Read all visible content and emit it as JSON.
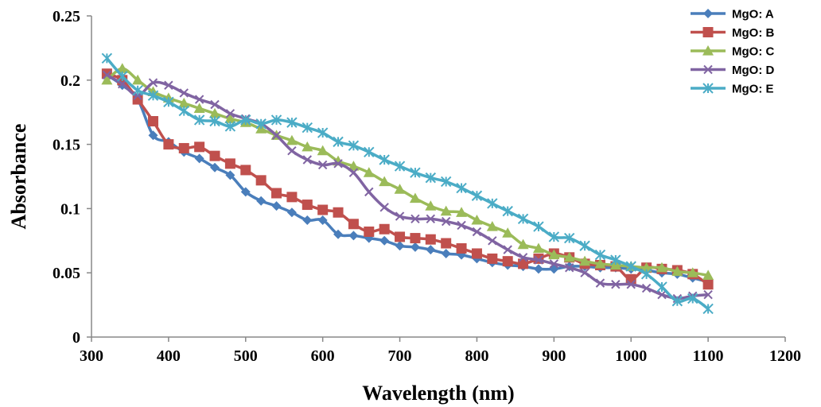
{
  "chart_data": {
    "type": "line",
    "title": "",
    "xlabel": "Wavelength (nm)",
    "ylabel": "Absorbance",
    "xlim": [
      300,
      1200
    ],
    "ylim": [
      0,
      0.25
    ],
    "xticks": [
      "300",
      "400",
      "500",
      "600",
      "700",
      "800",
      "900",
      "1000",
      "1100",
      "1200"
    ],
    "yticks": [
      "0",
      "0.05",
      "0.1",
      "0.15",
      "0.2",
      "0.25"
    ],
    "grid": false,
    "legend": "top-right",
    "series": [
      {
        "name": "MgO: A",
        "color": "#4a7ebb",
        "marker": "diamond",
        "x": [
          320,
          340,
          360,
          380,
          400,
          420,
          440,
          460,
          480,
          500,
          520,
          540,
          560,
          580,
          600,
          620,
          640,
          660,
          680,
          700,
          720,
          740,
          760,
          780,
          800,
          820,
          840,
          860,
          880,
          900,
          920,
          940,
          960,
          980,
          1000,
          1020,
          1040,
          1060,
          1080,
          1100
        ],
        "y": [
          0.204,
          0.196,
          0.185,
          0.157,
          0.152,
          0.144,
          0.139,
          0.132,
          0.126,
          0.113,
          0.106,
          0.102,
          0.097,
          0.091,
          0.091,
          0.08,
          0.079,
          0.077,
          0.075,
          0.071,
          0.07,
          0.068,
          0.065,
          0.064,
          0.061,
          0.058,
          0.056,
          0.055,
          0.053,
          0.053,
          0.055,
          0.055,
          0.054,
          0.054,
          0.053,
          0.052,
          0.05,
          0.049,
          0.046,
          0.043
        ]
      },
      {
        "name": "MgO: B",
        "color": "#c0504d",
        "marker": "square",
        "x": [
          320,
          340,
          360,
          380,
          400,
          420,
          440,
          460,
          480,
          500,
          520,
          540,
          560,
          580,
          600,
          620,
          640,
          660,
          680,
          700,
          720,
          740,
          760,
          780,
          800,
          820,
          840,
          860,
          880,
          900,
          920,
          940,
          960,
          980,
          1000,
          1020,
          1040,
          1060,
          1080,
          1100
        ],
        "y": [
          0.205,
          0.2,
          0.185,
          0.168,
          0.15,
          0.147,
          0.148,
          0.141,
          0.135,
          0.13,
          0.122,
          0.112,
          0.109,
          0.103,
          0.099,
          0.097,
          0.088,
          0.082,
          0.084,
          0.078,
          0.077,
          0.076,
          0.073,
          0.069,
          0.065,
          0.061,
          0.059,
          0.057,
          0.061,
          0.065,
          0.062,
          0.057,
          0.056,
          0.055,
          0.045,
          0.054,
          0.053,
          0.052,
          0.049,
          0.041
        ]
      },
      {
        "name": "MgO: C",
        "color": "#9bbb59",
        "marker": "triangle",
        "x": [
          320,
          340,
          360,
          380,
          400,
          420,
          440,
          460,
          480,
          500,
          520,
          540,
          560,
          580,
          600,
          620,
          640,
          660,
          680,
          700,
          720,
          740,
          760,
          780,
          800,
          820,
          840,
          860,
          880,
          900,
          920,
          940,
          960,
          980,
          1000,
          1020,
          1040,
          1060,
          1080,
          1100
        ],
        "y": [
          0.2,
          0.209,
          0.2,
          0.191,
          0.186,
          0.182,
          0.178,
          0.174,
          0.17,
          0.167,
          0.162,
          0.157,
          0.153,
          0.148,
          0.145,
          0.137,
          0.133,
          0.128,
          0.121,
          0.115,
          0.108,
          0.102,
          0.098,
          0.097,
          0.091,
          0.086,
          0.081,
          0.072,
          0.069,
          0.064,
          0.062,
          0.059,
          0.057,
          0.056,
          0.055,
          0.054,
          0.054,
          0.051,
          0.05,
          0.048
        ]
      },
      {
        "name": "MgO: D",
        "color": "#8064a2",
        "marker": "x",
        "x": [
          320,
          340,
          360,
          380,
          400,
          420,
          440,
          460,
          480,
          500,
          520,
          540,
          560,
          580,
          600,
          620,
          640,
          660,
          680,
          700,
          720,
          740,
          760,
          780,
          800,
          820,
          840,
          860,
          880,
          900,
          920,
          940,
          960,
          980,
          1000,
          1020,
          1040,
          1060,
          1080,
          1100
        ],
        "y": [
          0.204,
          0.197,
          0.188,
          0.198,
          0.196,
          0.19,
          0.185,
          0.181,
          0.174,
          0.17,
          0.166,
          0.157,
          0.145,
          0.138,
          0.134,
          0.135,
          0.128,
          0.113,
          0.101,
          0.094,
          0.092,
          0.092,
          0.09,
          0.087,
          0.082,
          0.075,
          0.068,
          0.062,
          0.06,
          0.057,
          0.054,
          0.05,
          0.042,
          0.041,
          0.041,
          0.038,
          0.033,
          0.03,
          0.032,
          0.033
        ]
      },
      {
        "name": "MgO: E",
        "color": "#4bacc6",
        "marker": "star",
        "x": [
          320,
          340,
          360,
          380,
          400,
          420,
          440,
          460,
          480,
          500,
          520,
          540,
          560,
          580,
          600,
          620,
          640,
          660,
          680,
          700,
          720,
          740,
          760,
          780,
          800,
          820,
          840,
          860,
          880,
          900,
          920,
          940,
          960,
          980,
          1000,
          1020,
          1040,
          1060,
          1080,
          1100
        ],
        "y": [
          0.217,
          0.203,
          0.192,
          0.188,
          0.183,
          0.176,
          0.169,
          0.168,
          0.164,
          0.169,
          0.166,
          0.169,
          0.167,
          0.163,
          0.159,
          0.152,
          0.149,
          0.144,
          0.138,
          0.133,
          0.128,
          0.124,
          0.121,
          0.116,
          0.11,
          0.104,
          0.098,
          0.092,
          0.086,
          0.078,
          0.077,
          0.071,
          0.064,
          0.06,
          0.055,
          0.049,
          0.039,
          0.028,
          0.03,
          0.022
        ]
      }
    ]
  }
}
